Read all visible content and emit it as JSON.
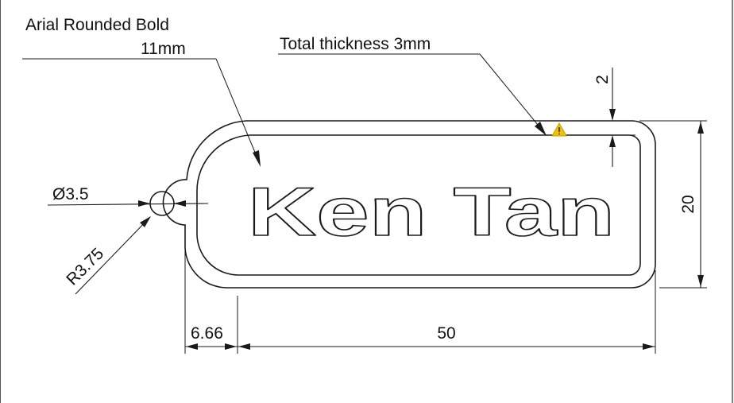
{
  "callouts": {
    "font_name": "Arial Rounded Bold",
    "font_size": "11mm",
    "thickness": "Total thickness 3mm"
  },
  "engraved_text": "Ken Tan",
  "dimensions": {
    "hole_diameter": "Ø3.5",
    "ring_radius": "R3.75",
    "ring_offset": "6.66",
    "body_length": "50",
    "height": "20",
    "border": "2"
  },
  "colors": {
    "line": "#1a1a1a",
    "warning": "#f2c200"
  },
  "icons": {
    "warning": "warning-triangle-icon"
  }
}
